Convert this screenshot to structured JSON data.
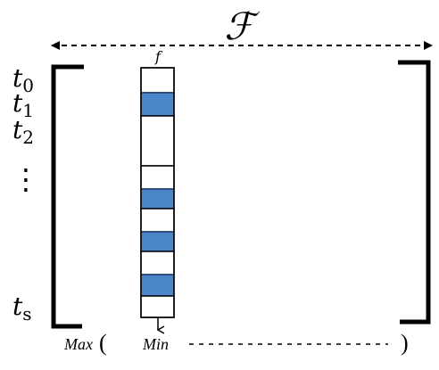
{
  "title_symbol": "ℱ",
  "column_label": "f",
  "row_labels": {
    "t0": {
      "base": "t",
      "sub": "0"
    },
    "t1": {
      "base": "t",
      "sub": "1"
    },
    "t2": {
      "base": "t",
      "sub": "2"
    },
    "ts": {
      "base": "t",
      "sub": "s"
    }
  },
  "ellipsis": "⋮",
  "bottom": {
    "max_label": "Max",
    "open_paren": "(",
    "min_label": "Min",
    "close_paren": ")"
  },
  "colors": {
    "cell_filled": "#4a86c8",
    "cell_border": "#1a3f6e",
    "stroke": "#000000"
  },
  "cells": [
    {
      "filled": false
    },
    {
      "filled": true
    },
    {
      "filled": false
    },
    {
      "filled": false
    },
    {
      "filled": true
    },
    {
      "filled": false
    },
    {
      "filled": true
    },
    {
      "filled": false
    },
    {
      "filled": true
    },
    {
      "filled": false
    }
  ]
}
